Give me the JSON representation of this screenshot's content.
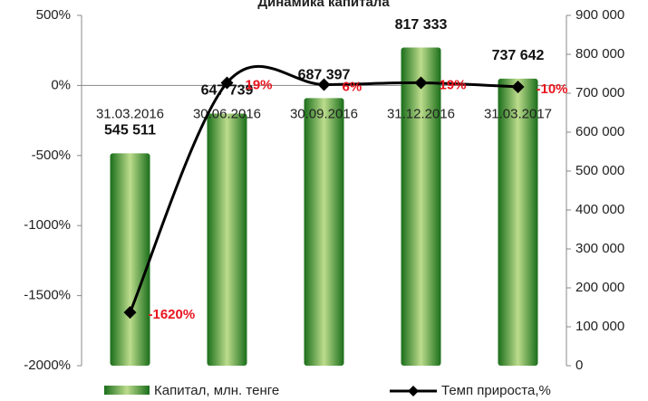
{
  "chart_data": {
    "type": "bar_line",
    "title": "Динамика капитала",
    "categories": [
      "31.03.2016",
      "30.06.2016",
      "30.09.2016",
      "31.12.2016",
      "31.03.2017"
    ],
    "series": [
      {
        "name": "Капитал, млн. тенге",
        "type": "bar",
        "axis": "y2",
        "color": "#2e8b2e",
        "values": [
          545511,
          647739,
          687397,
          817333,
          737642
        ],
        "value_labels": [
          "545 511",
          "647 739",
          "687 397",
          "817 333",
          "737 642"
        ]
      },
      {
        "name": "Темп прироста,%",
        "type": "line",
        "axis": "y",
        "color": "#000000",
        "values": [
          -1620,
          19,
          6,
          19,
          -10
        ],
        "value_labels": [
          "-1620%",
          "19%",
          "6%",
          "19%",
          "-10%"
        ]
      }
    ],
    "ylim": [
      -2000,
      500
    ],
    "yticks": [
      {
        "value": 500,
        "label": "500%"
      },
      {
        "value": 0,
        "label": "0%"
      },
      {
        "value": -500,
        "label": "-500%"
      },
      {
        "value": -1000,
        "label": "-1000%"
      },
      {
        "value": -1500,
        "label": "-1500%"
      },
      {
        "value": -2000,
        "label": "-2000%"
      }
    ],
    "y2lim": [
      0,
      900000
    ],
    "y2ticks": [
      0,
      {
        "value": 100000,
        "label": "100 000"
      },
      {
        "value": 200000,
        "label": "200 000"
      },
      {
        "value": 300000,
        "label": "300 000"
      },
      {
        "value": 400000,
        "label": "400 000"
      },
      {
        "value": 500000,
        "label": "500 000"
      },
      {
        "value": 600000,
        "label": "600 000"
      },
      {
        "value": 700000,
        "label": "700 000"
      },
      {
        "value": 800000,
        "label": "800 000"
      },
      {
        "value": 900000,
        "label": "900 000"
      }
    ],
    "legend": "bottom"
  }
}
